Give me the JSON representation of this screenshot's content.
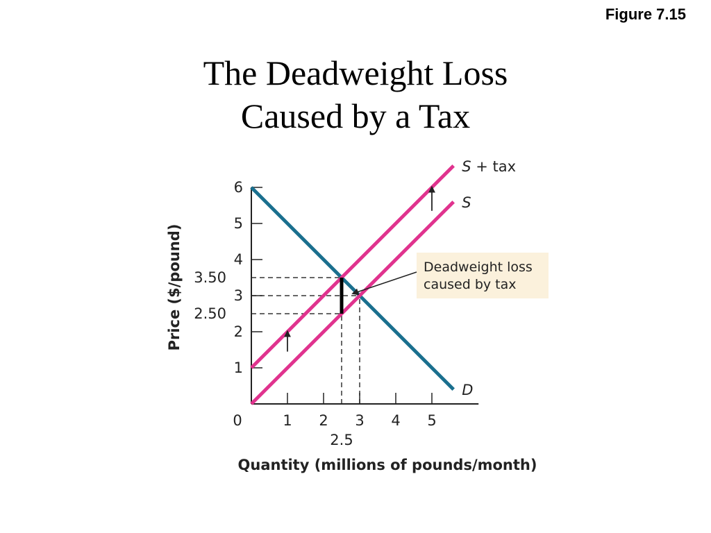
{
  "figure_number": "Figure 7.15",
  "title_line1": "The Deadweight Loss",
  "title_line2": "Caused by a Tax",
  "colors": {
    "demand": "#1a6f8e",
    "supply": "#e0338e",
    "annotation_bg": "#fbf1dc",
    "dashes": "#333333",
    "deadweight_loss": "#000000"
  },
  "chart_data": {
    "type": "line",
    "xlabel": "Quantity (millions of pounds/month)",
    "ylabel": "Price ($/pound)",
    "xlim": [
      0,
      5.6
    ],
    "ylim": [
      0,
      6
    ],
    "origin_label": "0",
    "x_ticks": [
      {
        "value": 1,
        "label": "1"
      },
      {
        "value": 2,
        "label": "2"
      },
      {
        "value": 3,
        "label": "3"
      },
      {
        "value": 4,
        "label": "4"
      },
      {
        "value": 5,
        "label": "5"
      }
    ],
    "x_extra_label": {
      "value": 2.5,
      "label": "2.5"
    },
    "y_ticks": [
      {
        "value": 1,
        "label": "1"
      },
      {
        "value": 2,
        "label": "2"
      },
      {
        "value": 3,
        "label": "3"
      },
      {
        "value": 4,
        "label": "4"
      },
      {
        "value": 5,
        "label": "5"
      },
      {
        "value": 6,
        "label": "6"
      }
    ],
    "y_extra_ticks": [
      {
        "value": 3.5,
        "label": "3.50"
      },
      {
        "value": 2.5,
        "label": "2.50"
      }
    ],
    "series": [
      {
        "name": "D",
        "label_main": "D",
        "label_suffix": "",
        "color": "#1a6f8e",
        "points": [
          [
            0,
            6
          ],
          [
            5.6,
            0.4
          ]
        ]
      },
      {
        "name": "S",
        "label_main": "S",
        "label_suffix": "",
        "color": "#e0338e",
        "points": [
          [
            0,
            0
          ],
          [
            5.6,
            5.6
          ]
        ]
      },
      {
        "name": "S + tax",
        "label_main": "S",
        "label_suffix": " + tax",
        "color": "#e0338e",
        "points": [
          [
            0,
            1
          ],
          [
            5.6,
            6.6
          ]
        ]
      }
    ],
    "reference_lines": [
      {
        "type": "vertical",
        "x": 2.5,
        "y_to": 3.5
      },
      {
        "type": "vertical",
        "x": 3,
        "y_to": 3
      },
      {
        "type": "horizontal",
        "y": 3.5,
        "x_to": 2.5
      },
      {
        "type": "horizontal",
        "y": 3,
        "x_to": 3
      },
      {
        "type": "horizontal",
        "y": 2.5,
        "x_to": 2.5
      }
    ],
    "deadweight_loss_segment": {
      "x": 2.5,
      "y_from": 2.5,
      "y_to": 3.5
    },
    "shift_arrows": [
      {
        "x": 1,
        "y_from": 1.45,
        "y_to": 1.95
      },
      {
        "x": 5,
        "y_from": 5.35,
        "y_to": 5.95
      }
    ],
    "annotation": {
      "line1": "Deadweight loss",
      "line2": "caused by tax",
      "points_to": {
        "x": 2.75,
        "y": 3.0
      }
    }
  }
}
